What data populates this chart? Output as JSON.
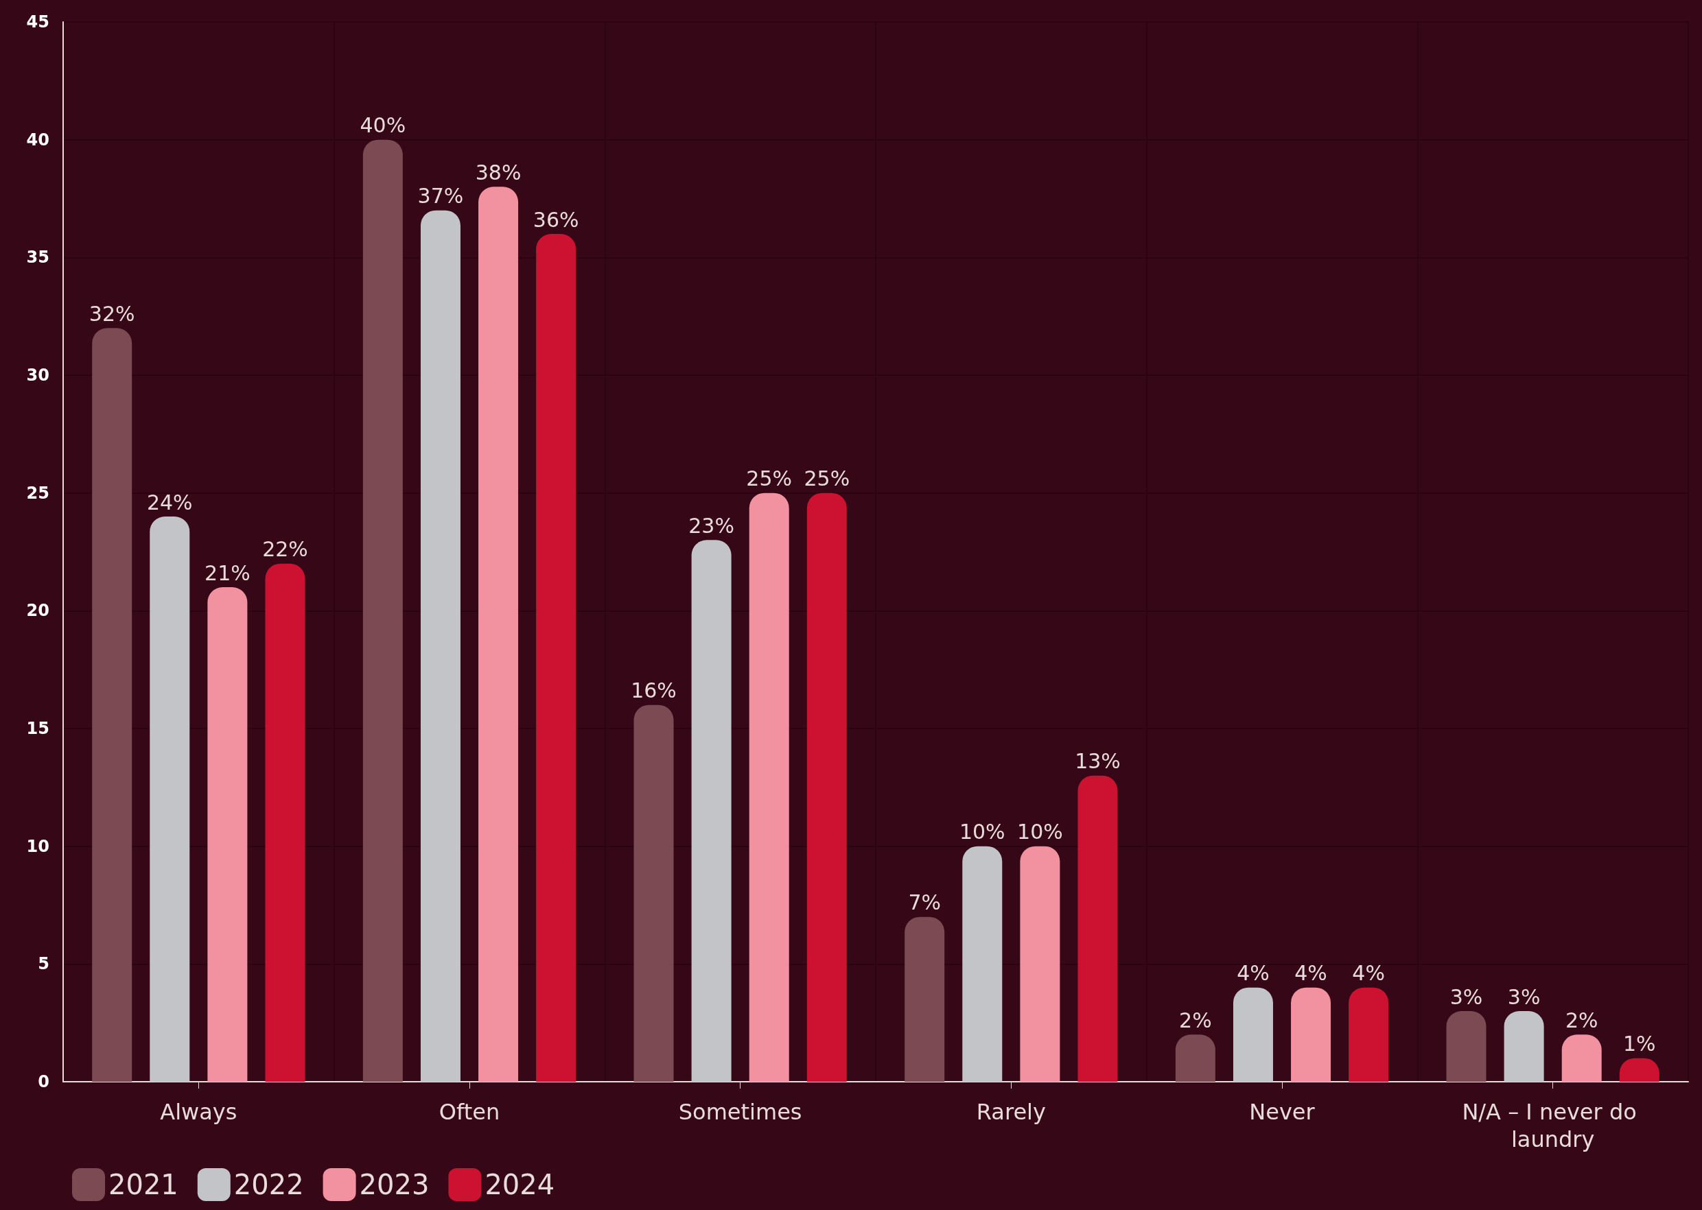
{
  "chart_data": {
    "type": "bar",
    "categories": [
      "Always",
      "Often",
      "Sometimes",
      "Rarely",
      "Never",
      "N/A – I never do laundry"
    ],
    "series": [
      {
        "name": "2021",
        "color": "#7b4a52",
        "values": [
          32,
          40,
          16,
          7,
          2,
          3
        ],
        "value_labels": [
          "32%",
          "40%",
          "16%",
          "7%",
          "2%",
          "3%"
        ]
      },
      {
        "name": "2022",
        "color": "#c3c4c8",
        "values": [
          24,
          37,
          23,
          10,
          4,
          3
        ],
        "value_labels": [
          "24%",
          "37%",
          "23%",
          "10%",
          "4%",
          "3%"
        ]
      },
      {
        "name": "2023",
        "color": "#f291a0",
        "values": [
          21,
          38,
          25,
          10,
          4,
          2
        ],
        "value_labels": [
          "21%",
          "38%",
          "25%",
          "10%",
          "4%",
          "2%"
        ]
      },
      {
        "name": "2024",
        "color": "#cc1230",
        "values": [
          22,
          36,
          25,
          13,
          4,
          1
        ],
        "value_labels": [
          "22%",
          "36%",
          "25%",
          "13%",
          "4%",
          "1%"
        ]
      }
    ],
    "ylim": [
      0,
      45
    ],
    "yticks": [
      0,
      5,
      10,
      15,
      20,
      25,
      30,
      35,
      40,
      45
    ],
    "grid": true,
    "legend": "bottom left"
  }
}
